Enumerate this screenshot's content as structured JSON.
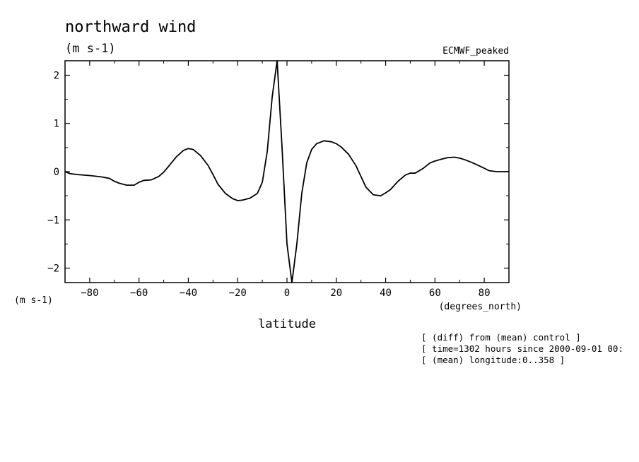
{
  "chart_data": {
    "type": "line",
    "title": "northward wind",
    "units": "(m s-1)",
    "dataset_label": "ECMWF_peaked",
    "ylabel_units": "(m s-1)",
    "x_units": "(degrees_north)",
    "xlabel": "latitude",
    "xlim": [
      -90,
      90
    ],
    "ylim": [
      -2.3,
      2.3
    ],
    "x_ticks": [
      -80,
      -60,
      -40,
      -20,
      0,
      20,
      40,
      60,
      80
    ],
    "x_tick_labels": [
      "−80",
      "−60",
      "−40",
      "−20",
      "0",
      "20",
      "40",
      "60",
      "80"
    ],
    "y_ticks": [
      -2,
      -1,
      0,
      1,
      2
    ],
    "y_tick_labels": [
      "−2",
      "−1",
      "0",
      "1",
      "2"
    ],
    "grid": false,
    "series": [
      {
        "x": [
          -90,
          -88,
          -85,
          -80,
          -75,
          -72,
          -70,
          -68,
          -65,
          -62,
          -60,
          -58,
          -55,
          -52,
          -50,
          -48,
          -45,
          -42,
          -40,
          -38,
          -35,
          -32,
          -30,
          -28,
          -25,
          -22,
          -20,
          -18,
          -15,
          -12,
          -10,
          -8,
          -6,
          -4,
          -2,
          0,
          2,
          4,
          6,
          8,
          10,
          12,
          15,
          18,
          20,
          22,
          25,
          28,
          30,
          32,
          35,
          38,
          40,
          42,
          45,
          48,
          50,
          52,
          55,
          58,
          60,
          62,
          65,
          68,
          70,
          72,
          75,
          78,
          80,
          82,
          85,
          88,
          90
        ],
        "y": [
          0,
          -0.04,
          -0.06,
          -0.08,
          -0.11,
          -0.14,
          -0.2,
          -0.24,
          -0.28,
          -0.28,
          -0.22,
          -0.18,
          -0.17,
          -0.1,
          -0.01,
          0.11,
          0.3,
          0.44,
          0.48,
          0.46,
          0.33,
          0.13,
          -0.06,
          -0.26,
          -0.45,
          -0.56,
          -0.6,
          -0.59,
          -0.55,
          -0.45,
          -0.22,
          0.42,
          1.55,
          2.3,
          0.5,
          -1.5,
          -2.3,
          -1.5,
          -0.45,
          0.18,
          0.46,
          0.58,
          0.64,
          0.62,
          0.58,
          0.51,
          0.36,
          0.12,
          -0.1,
          -0.32,
          -0.48,
          -0.5,
          -0.44,
          -0.37,
          -0.2,
          -0.07,
          -0.03,
          -0.03,
          0.06,
          0.18,
          0.22,
          0.25,
          0.29,
          0.3,
          0.28,
          0.25,
          0.19,
          0.12,
          0.07,
          0.02,
          0,
          0,
          0
        ]
      }
    ],
    "annotations": [
      "[ (diff) from (mean) control ]",
      "[ time=1302 hours since 2000-09-01 00:",
      "[ (mean) longitude:0..358 ]"
    ]
  }
}
